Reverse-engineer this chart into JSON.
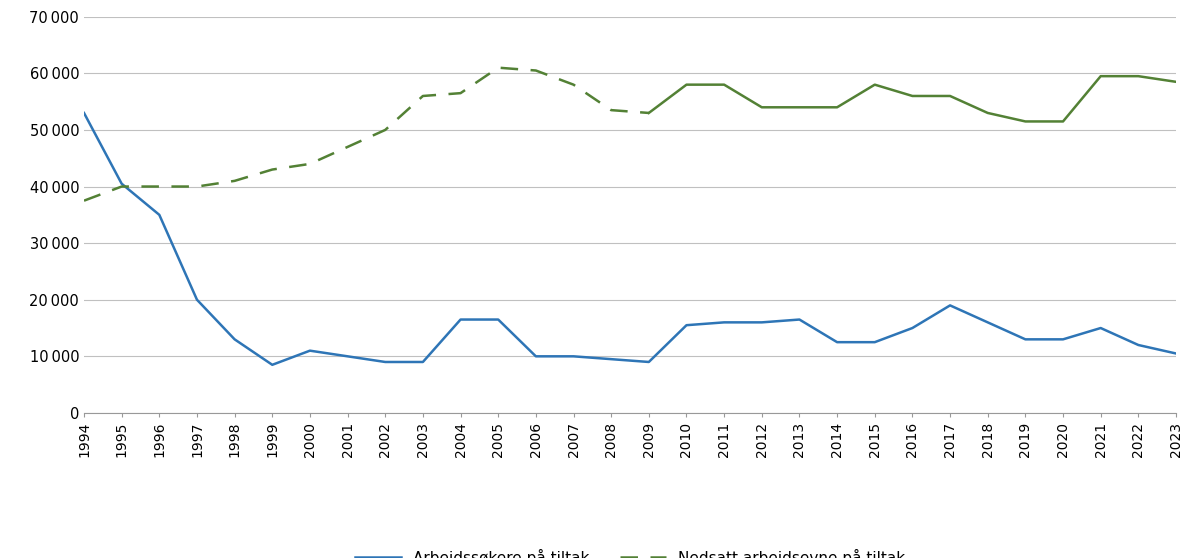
{
  "years": [
    1994,
    1995,
    1996,
    1997,
    1998,
    1999,
    2000,
    2001,
    2002,
    2003,
    2004,
    2005,
    2006,
    2007,
    2008,
    2009,
    2010,
    2011,
    2012,
    2013,
    2014,
    2015,
    2016,
    2017,
    2018,
    2019,
    2020,
    2021,
    2022,
    2023
  ],
  "arbeidssokere": [
    53000,
    40500,
    35000,
    20000,
    13000,
    8500,
    11000,
    10000,
    9000,
    9000,
    16500,
    16500,
    10000,
    10000,
    9500,
    9000,
    15500,
    16000,
    16000,
    16500,
    12500,
    12500,
    15000,
    19000,
    16000,
    13000,
    13000,
    15000,
    12000,
    10500
  ],
  "nedsatt_dashed_years": [
    1994,
    1995,
    1996,
    1997,
    1998,
    1999,
    2000,
    2001,
    2002,
    2003,
    2004,
    2005,
    2006,
    2007,
    2008,
    2009
  ],
  "nedsatt_dashed_vals": [
    37500,
    40000,
    40000,
    40000,
    41000,
    43000,
    44000,
    47000,
    50000,
    56000,
    56500,
    61000,
    60500,
    58000,
    53500,
    53000
  ],
  "nedsatt_solid_years": [
    2009,
    2010,
    2011,
    2012,
    2013,
    2014,
    2015,
    2016,
    2017,
    2018,
    2019,
    2020,
    2021,
    2022,
    2023
  ],
  "nedsatt_solid_vals": [
    53000,
    58000,
    58000,
    54000,
    54000,
    54000,
    58000,
    56000,
    56000,
    53000,
    51500,
    51500,
    59500,
    59500,
    58500
  ],
  "ylim": [
    0,
    70000
  ],
  "yticks": [
    0,
    10000,
    20000,
    30000,
    40000,
    50000,
    60000,
    70000
  ],
  "color_blue": "#2e75b6",
  "color_green": "#538135",
  "legend_label_blue": "Arbeidssøkere på tiltak",
  "legend_label_green": "Nedsatt arbeidsevne på tiltak",
  "background_color": "#ffffff",
  "grid_color": "#c0c0c0"
}
